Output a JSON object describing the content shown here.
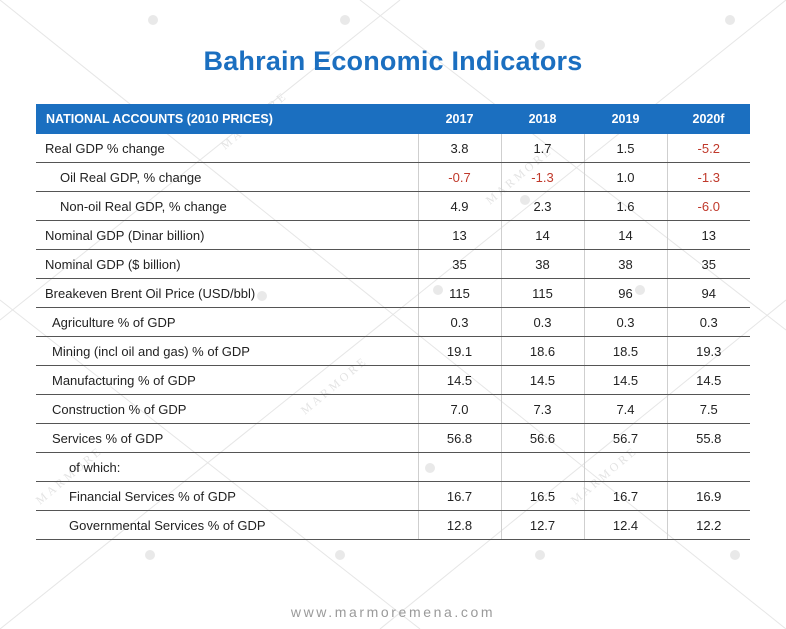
{
  "title": "Bahrain Economic Indicators",
  "footer": "www.marmoremena.com",
  "watermark_text": "MARMORE",
  "colors": {
    "header_bg": "#1b6fc0",
    "title": "#1b6fc0",
    "negative": "#c0392b"
  },
  "chart_data": {
    "type": "table",
    "header_label": "NATIONAL ACCOUNTS  (2010 PRICES)",
    "columns": [
      "2017",
      "2018",
      "2019",
      "2020f"
    ],
    "rows": [
      {
        "label": "Real GDP % change",
        "indent": 0,
        "values": [
          "3.8",
          "1.7",
          "1.5",
          "-5.2"
        ]
      },
      {
        "label": "Oil Real GDP, % change",
        "indent": 2,
        "values": [
          "-0.7",
          "-1.3",
          "1.0",
          "-1.3"
        ]
      },
      {
        "label": "Non-oil Real GDP, % change",
        "indent": 2,
        "values": [
          "4.9",
          "2.3",
          "1.6",
          "-6.0"
        ]
      },
      {
        "label": "Nominal GDP (Dinar billion)",
        "indent": 0,
        "values": [
          "13",
          "14",
          "14",
          "13"
        ]
      },
      {
        "label": "Nominal GDP ($ billion)",
        "indent": 0,
        "values": [
          "35",
          "38",
          "38",
          "35"
        ]
      },
      {
        "label": "Breakeven Brent Oil Price (USD/bbl)",
        "indent": 0,
        "values": [
          "115",
          "115",
          "96",
          "94"
        ]
      },
      {
        "label": "Agriculture  % of GDP",
        "indent": 1,
        "values": [
          "0.3",
          "0.3",
          "0.3",
          "0.3"
        ]
      },
      {
        "label": "Mining (incl oil and gas)  % of GDP",
        "indent": 1,
        "values": [
          "19.1",
          "18.6",
          "18.5",
          "19.3"
        ]
      },
      {
        "label": "Manufacturing  % of GDP",
        "indent": 1,
        "values": [
          "14.5",
          "14.5",
          "14.5",
          "14.5"
        ]
      },
      {
        "label": "Construction  % of GDP",
        "indent": 1,
        "values": [
          "7.0",
          "7.3",
          "7.4",
          "7.5"
        ]
      },
      {
        "label": "Services  % of GDP",
        "indent": 1,
        "values": [
          "56.8",
          "56.6",
          "56.7",
          "55.8"
        ]
      },
      {
        "label": "of which:",
        "indent": 3,
        "values": [
          "",
          "",
          "",
          ""
        ]
      },
      {
        "label": "Financial Services  % of GDP",
        "indent": 3,
        "values": [
          "16.7",
          "16.5",
          "16.7",
          "16.9"
        ]
      },
      {
        "label": "Governmental Services  % of GDP",
        "indent": 3,
        "values": [
          "12.8",
          "12.7",
          "12.4",
          "12.2"
        ]
      }
    ]
  }
}
